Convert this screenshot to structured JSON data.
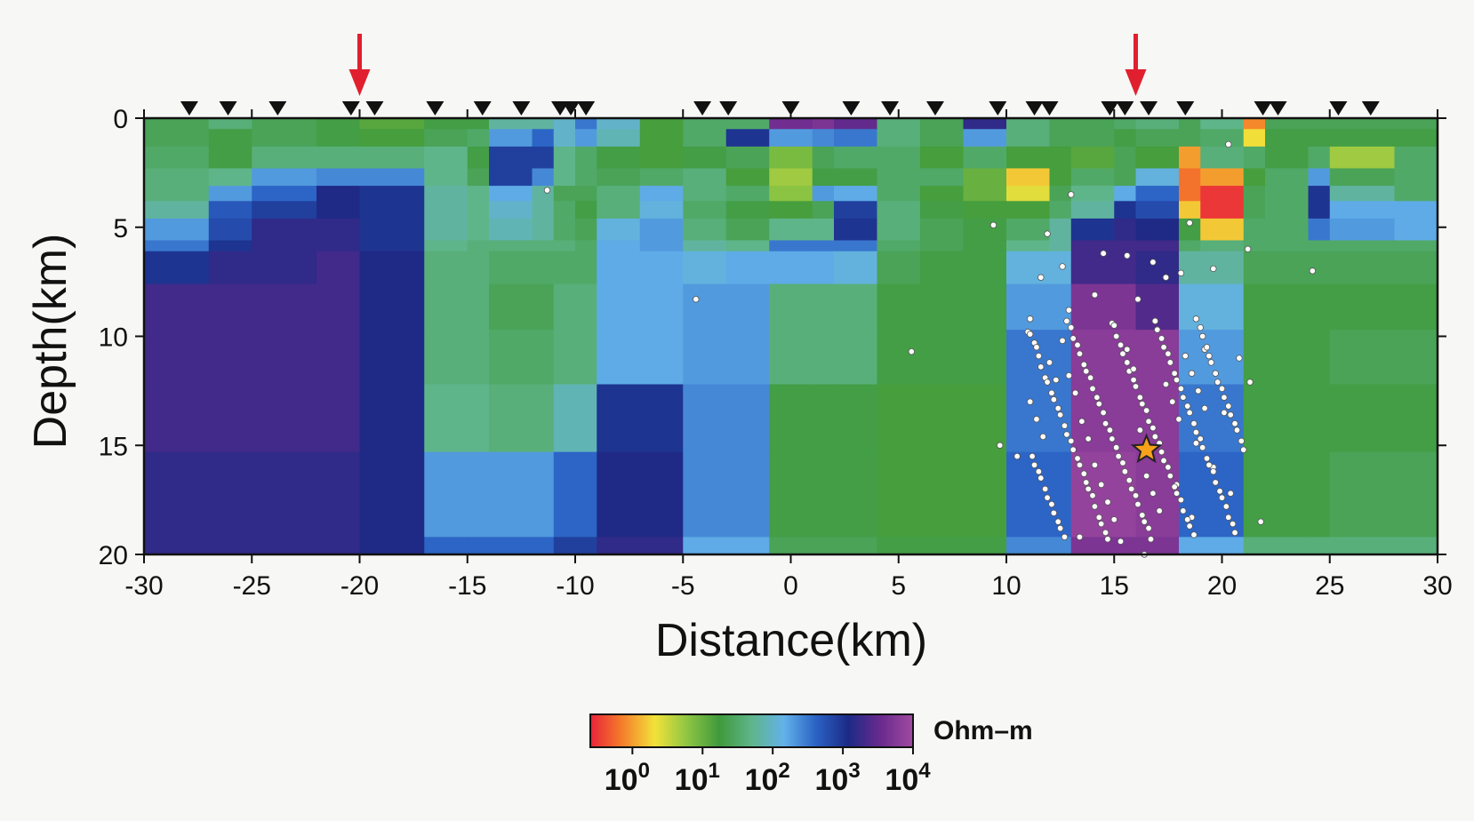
{
  "chart_data": {
    "type": "heatmap",
    "title": "",
    "xlabel": "Distance(km)",
    "ylabel": "Depth(km)",
    "xlim": [
      -30,
      30
    ],
    "ylim": [
      0,
      20
    ],
    "y_inverted": true,
    "x_ticks": [
      "-30",
      "-25",
      "-20",
      "-15",
      "-10",
      "-5",
      "0",
      "5",
      "10",
      "15",
      "20",
      "25",
      "30"
    ],
    "y_ticks": [
      "0",
      "5",
      "10",
      "15",
      "20"
    ],
    "colorbar": {
      "unit": "Ohm–m",
      "scale": "log",
      "range": [
        -0.6,
        4
      ],
      "tick_base": "10",
      "tick_exponents": [
        "0",
        "1",
        "2",
        "3",
        "4"
      ],
      "colors": [
        "#e8233a",
        "#f57f2a",
        "#f2e23a",
        "#8ec543",
        "#3f9a3c",
        "#5fb58a",
        "#63b2ea",
        "#2a62c4",
        "#1c2a86",
        "#6a2a8e",
        "#a04aa0"
      ]
    },
    "x_edges": [
      -30,
      -27,
      -25,
      -22,
      -20,
      -17,
      -15,
      -14,
      -12,
      -11,
      -10,
      -9,
      -7,
      -5,
      -3,
      -1,
      1,
      2,
      4,
      6,
      8,
      10,
      12,
      13,
      15,
      16,
      18,
      19,
      21,
      22,
      24,
      25,
      28,
      30
    ],
    "y_edges": [
      0,
      0.5,
      1.3,
      2.3,
      3.1,
      3.8,
      4.6,
      5.6,
      6.1,
      7.6,
      9.7,
      12.2,
      15.3,
      19.2,
      20
    ],
    "log10_resistivity": [
      [
        1.4,
        1.6,
        1.4,
        1.3,
        1.1,
        1.3,
        1.3,
        1.8,
        1.8,
        2.0,
        2.5,
        2.0,
        1.2,
        1.5,
        1.5,
        3.6,
        3.7,
        3.5,
        1.6,
        1.4,
        3.2,
        1.6,
        1.4,
        1.4,
        1.5,
        1.6,
        1.4,
        1.7,
        -0.1,
        1.4,
        1.4,
        1.4,
        1.4
      ],
      [
        1.4,
        1.3,
        1.4,
        1.3,
        1.2,
        1.4,
        1.5,
        2.3,
        2.6,
        2.0,
        2.3,
        1.9,
        1.2,
        1.5,
        3.0,
        2.3,
        2.4,
        2.5,
        1.6,
        1.4,
        2.3,
        1.6,
        1.4,
        1.4,
        1.3,
        1.4,
        1.4,
        1.5,
        0.3,
        1.3,
        1.3,
        1.3,
        1.3
      ],
      [
        1.5,
        1.3,
        1.6,
        1.6,
        1.6,
        1.7,
        1.3,
        2.9,
        2.9,
        1.7,
        1.5,
        1.3,
        1.2,
        1.3,
        1.4,
        0.9,
        1.4,
        1.5,
        1.5,
        1.2,
        1.5,
        1.2,
        1.2,
        1.1,
        1.4,
        1.2,
        0.0,
        1.6,
        1.5,
        1.3,
        1.5,
        0.7,
        1.5
      ],
      [
        1.6,
        1.7,
        2.3,
        2.4,
        2.4,
        1.7,
        1.4,
        2.9,
        2.4,
        1.7,
        1.5,
        1.4,
        1.5,
        1.6,
        1.2,
        0.7,
        1.3,
        1.3,
        1.5,
        1.5,
        1.0,
        0.2,
        1.2,
        1.5,
        1.4,
        2.1,
        -0.2,
        0.0,
        1.2,
        1.5,
        2.3,
        1.4,
        1.5
      ],
      [
        1.6,
        2.3,
        2.6,
        3.1,
        3.0,
        1.8,
        1.7,
        2.2,
        1.8,
        1.4,
        1.4,
        1.6,
        2.2,
        1.6,
        1.5,
        0.8,
        2.3,
        2.2,
        1.5,
        1.2,
        1.0,
        0.4,
        1.4,
        1.7,
        2.2,
        2.6,
        -0.2,
        -0.5,
        1.4,
        1.5,
        3.0,
        1.8,
        1.5
      ],
      [
        1.8,
        2.7,
        2.9,
        3.1,
        3.0,
        1.8,
        1.7,
        2.0,
        1.8,
        1.5,
        1.3,
        1.6,
        2.1,
        1.5,
        1.3,
        1.2,
        1.4,
        2.9,
        1.6,
        1.3,
        1.2,
        1.2,
        1.5,
        1.8,
        3.0,
        2.8,
        0.2,
        -0.5,
        1.4,
        1.5,
        3.0,
        2.2,
        2.2
      ],
      [
        2.3,
        2.8,
        3.2,
        3.2,
        3.0,
        1.8,
        1.7,
        1.9,
        1.8,
        1.5,
        1.4,
        2.1,
        2.3,
        1.6,
        1.4,
        1.7,
        1.7,
        3.0,
        1.6,
        1.4,
        1.3,
        1.5,
        1.8,
        3.0,
        3.2,
        3.1,
        1.3,
        0.2,
        1.5,
        1.5,
        2.5,
        2.3,
        2.2
      ],
      [
        2.5,
        3.0,
        3.2,
        3.2,
        3.0,
        1.7,
        1.6,
        1.6,
        1.6,
        1.6,
        1.5,
        2.2,
        2.3,
        1.8,
        1.7,
        2.5,
        2.5,
        2.5,
        1.5,
        1.4,
        1.3,
        1.7,
        1.8,
        3.3,
        3.3,
        3.3,
        1.5,
        1.6,
        1.5,
        1.5,
        1.5,
        1.5,
        1.5
      ],
      [
        3.0,
        3.2,
        3.2,
        3.3,
        3.1,
        1.6,
        1.6,
        1.5,
        1.5,
        1.5,
        1.5,
        2.2,
        2.2,
        2.1,
        2.2,
        2.2,
        2.2,
        2.1,
        1.4,
        1.3,
        1.3,
        2.1,
        2.1,
        3.3,
        3.3,
        3.2,
        1.8,
        1.8,
        1.4,
        1.4,
        1.4,
        1.4,
        1.4
      ],
      [
        3.3,
        3.3,
        3.3,
        3.3,
        3.1,
        1.6,
        1.6,
        1.4,
        1.4,
        1.6,
        1.6,
        2.2,
        2.2,
        2.3,
        2.3,
        1.6,
        1.6,
        1.6,
        1.3,
        1.3,
        1.3,
        2.3,
        2.3,
        3.7,
        3.7,
        3.4,
        2.1,
        2.1,
        1.3,
        1.3,
        1.3,
        1.3,
        1.3
      ],
      [
        3.3,
        3.3,
        3.3,
        3.3,
        3.1,
        1.6,
        1.6,
        1.5,
        1.5,
        1.6,
        1.6,
        2.2,
        2.2,
        2.3,
        2.3,
        1.6,
        1.6,
        1.6,
        1.3,
        1.3,
        1.3,
        2.5,
        2.5,
        3.8,
        3.8,
        3.8,
        2.3,
        2.3,
        1.3,
        1.3,
        1.3,
        1.4,
        1.4
      ],
      [
        3.3,
        3.3,
        3.3,
        3.3,
        3.1,
        1.7,
        1.7,
        1.6,
        1.6,
        1.9,
        1.9,
        3.0,
        3.0,
        2.4,
        2.4,
        1.3,
        1.3,
        1.3,
        1.2,
        1.2,
        1.2,
        2.5,
        2.5,
        3.8,
        3.8,
        3.8,
        2.5,
        2.5,
        1.3,
        1.3,
        1.3,
        1.3,
        1.3
      ],
      [
        3.2,
        3.2,
        3.2,
        3.2,
        3.1,
        2.3,
        2.3,
        2.3,
        2.3,
        2.6,
        2.6,
        3.1,
        3.1,
        2.4,
        2.4,
        1.3,
        1.3,
        1.3,
        1.2,
        1.2,
        1.2,
        2.6,
        2.6,
        3.9,
        3.9,
        3.8,
        2.6,
        2.6,
        1.3,
        1.3,
        1.3,
        1.4,
        1.4
      ],
      [
        3.2,
        3.2,
        3.2,
        3.2,
        3.1,
        2.6,
        2.6,
        2.6,
        2.6,
        2.9,
        2.9,
        3.2,
        3.2,
        2.2,
        2.2,
        1.4,
        1.4,
        1.4,
        1.3,
        1.3,
        1.3,
        2.4,
        2.4,
        3.7,
        3.7,
        3.7,
        2.2,
        2.2,
        1.6,
        1.6,
        1.6,
        1.6,
        1.6
      ]
    ],
    "stations_x": [
      -27.9,
      -26.1,
      -23.8,
      -20.4,
      -19.3,
      -16.5,
      -14.3,
      -12.5,
      -10.7,
      -10.2,
      -9.5,
      -4.1,
      -2.9,
      0.0,
      2.8,
      4.6,
      6.7,
      9.6,
      11.3,
      12.0,
      14.8,
      15.5,
      16.6,
      18.3,
      21.9,
      22.6,
      25.4,
      26.9
    ],
    "arrows_x": [
      -20.0,
      16.0
    ],
    "mainshock": [
      16.5,
      15.2
    ],
    "events": [
      [
        -11.3,
        3.3
      ],
      [
        -4.4,
        8.3
      ],
      [
        9.4,
        4.9
      ],
      [
        11.9,
        5.3
      ],
      [
        5.6,
        10.7
      ],
      [
        11.6,
        7.3
      ],
      [
        21.2,
        6.0
      ],
      [
        24.2,
        7.0
      ],
      [
        18.1,
        7.1
      ],
      [
        20.3,
        1.2
      ],
      [
        13.0,
        3.5
      ],
      [
        18.5,
        4.8
      ],
      [
        19.6,
        6.9
      ],
      [
        10.5,
        15.5
      ],
      [
        21.8,
        18.5
      ],
      [
        16.4,
        20.0
      ],
      [
        13.4,
        19.2
      ],
      [
        9.7,
        15.0
      ],
      [
        12.6,
        6.8
      ],
      [
        14.5,
        6.2
      ],
      [
        15.6,
        6.3
      ],
      [
        17.4,
        7.3
      ],
      [
        16.8,
        6.6
      ],
      [
        12.9,
        8.8
      ],
      [
        14.1,
        8.1
      ],
      [
        16.1,
        8.3
      ],
      [
        11.1,
        9.2
      ],
      [
        20.8,
        11.0
      ],
      [
        21.3,
        12.1
      ],
      [
        19.2,
        10.6
      ],
      [
        20.1,
        13.5
      ],
      [
        18.8,
        14.9
      ],
      [
        19.6,
        16.0
      ],
      [
        20.4,
        17.2
      ],
      [
        17.9,
        16.8
      ],
      [
        18.6,
        18.3
      ],
      [
        11.0,
        9.8
      ],
      [
        11.1,
        9.9
      ],
      [
        11.3,
        10.3
      ],
      [
        11.4,
        10.5
      ],
      [
        11.5,
        10.9
      ],
      [
        11.6,
        11.4
      ],
      [
        11.8,
        11.9
      ],
      [
        11.9,
        12.1
      ],
      [
        12.1,
        12.6
      ],
      [
        12.2,
        12.9
      ],
      [
        12.4,
        13.3
      ],
      [
        12.5,
        13.6
      ],
      [
        12.7,
        14.1
      ],
      [
        12.8,
        14.5
      ],
      [
        13.0,
        14.8
      ],
      [
        13.1,
        15.2
      ],
      [
        13.3,
        15.6
      ],
      [
        13.4,
        15.9
      ],
      [
        13.6,
        16.3
      ],
      [
        13.7,
        16.7
      ],
      [
        13.8,
        17.0
      ],
      [
        14.0,
        17.3
      ],
      [
        14.1,
        17.8
      ],
      [
        14.3,
        18.3
      ],
      [
        14.4,
        18.6
      ],
      [
        14.6,
        19.0
      ],
      [
        14.7,
        19.3
      ],
      [
        14.9,
        9.4
      ],
      [
        15.0,
        9.5
      ],
      [
        15.1,
        10.0
      ],
      [
        15.3,
        10.4
      ],
      [
        15.4,
        10.8
      ],
      [
        15.6,
        11.2
      ],
      [
        15.7,
        11.6
      ],
      [
        15.9,
        12.0
      ],
      [
        16.0,
        12.3
      ],
      [
        16.2,
        12.8
      ],
      [
        16.3,
        13.1
      ],
      [
        16.5,
        13.4
      ],
      [
        16.6,
        13.9
      ],
      [
        16.8,
        14.2
      ],
      [
        16.9,
        14.6
      ],
      [
        17.1,
        14.9
      ],
      [
        17.2,
        15.3
      ],
      [
        17.3,
        15.7
      ],
      [
        17.5,
        16.0
      ],
      [
        17.6,
        16.4
      ],
      [
        17.8,
        16.9
      ],
      [
        17.9,
        17.2
      ],
      [
        18.1,
        17.5
      ],
      [
        18.2,
        18.0
      ],
      [
        18.4,
        18.4
      ],
      [
        18.5,
        18.7
      ],
      [
        18.7,
        19.1
      ],
      [
        18.8,
        9.2
      ],
      [
        19.0,
        9.6
      ],
      [
        19.1,
        10.0
      ],
      [
        19.3,
        10.5
      ],
      [
        19.4,
        10.9
      ],
      [
        19.5,
        11.2
      ],
      [
        19.7,
        11.7
      ],
      [
        19.8,
        12.1
      ],
      [
        20.0,
        12.4
      ],
      [
        20.1,
        12.8
      ],
      [
        20.3,
        13.2
      ],
      [
        20.4,
        13.6
      ],
      [
        20.6,
        14.0
      ],
      [
        20.7,
        14.3
      ],
      [
        20.9,
        14.8
      ],
      [
        21.0,
        15.2
      ],
      [
        11.2,
        15.5
      ],
      [
        11.3,
        15.9
      ],
      [
        11.5,
        16.2
      ],
      [
        11.6,
        16.5
      ],
      [
        11.8,
        17.0
      ],
      [
        11.9,
        17.4
      ],
      [
        12.1,
        17.7
      ],
      [
        12.2,
        18.1
      ],
      [
        12.4,
        18.5
      ],
      [
        12.5,
        18.8
      ],
      [
        12.7,
        19.2
      ],
      [
        12.8,
        9.3
      ],
      [
        13.0,
        9.6
      ],
      [
        13.1,
        10.1
      ],
      [
        13.3,
        10.4
      ],
      [
        13.4,
        10.8
      ],
      [
        13.6,
        11.3
      ],
      [
        13.7,
        11.6
      ],
      [
        13.9,
        11.9
      ],
      [
        14.0,
        12.4
      ],
      [
        14.2,
        12.8
      ],
      [
        14.3,
        13.1
      ],
      [
        14.5,
        13.5
      ],
      [
        14.6,
        14.0
      ],
      [
        14.8,
        14.3
      ],
      [
        14.9,
        14.7
      ],
      [
        15.1,
        15.1
      ],
      [
        15.2,
        15.5
      ],
      [
        15.4,
        15.8
      ],
      [
        15.5,
        16.2
      ],
      [
        15.7,
        16.6
      ],
      [
        15.8,
        17.0
      ],
      [
        16.0,
        17.3
      ],
      [
        16.1,
        17.7
      ],
      [
        16.3,
        18.2
      ],
      [
        16.4,
        18.5
      ],
      [
        16.6,
        18.8
      ],
      [
        16.7,
        19.3
      ],
      [
        16.9,
        9.3
      ],
      [
        17.0,
        9.7
      ],
      [
        17.2,
        10.1
      ],
      [
        17.3,
        10.5
      ],
      [
        17.5,
        10.8
      ],
      [
        17.6,
        11.2
      ],
      [
        17.8,
        11.7
      ],
      [
        17.9,
        12.0
      ],
      [
        18.1,
        12.4
      ],
      [
        18.2,
        12.8
      ],
      [
        18.4,
        13.2
      ],
      [
        18.5,
        13.5
      ],
      [
        18.7,
        14.0
      ],
      [
        18.8,
        14.4
      ],
      [
        19.0,
        14.7
      ],
      [
        19.1,
        15.1
      ],
      [
        19.3,
        15.6
      ],
      [
        19.4,
        15.9
      ],
      [
        19.6,
        16.2
      ],
      [
        19.7,
        16.7
      ],
      [
        19.9,
        17.1
      ],
      [
        20.0,
        17.4
      ],
      [
        20.2,
        17.8
      ],
      [
        20.3,
        18.3
      ],
      [
        20.5,
        18.6
      ],
      [
        20.6,
        19.0
      ],
      [
        11.1,
        13.0
      ],
      [
        11.4,
        13.8
      ],
      [
        11.7,
        14.6
      ],
      [
        12.0,
        11.2
      ],
      [
        12.3,
        12.0
      ],
      [
        12.6,
        10.2
      ],
      [
        12.9,
        11.8
      ],
      [
        13.2,
        12.6
      ],
      [
        13.5,
        13.9
      ],
      [
        13.8,
        14.7
      ],
      [
        14.1,
        15.9
      ],
      [
        14.4,
        16.8
      ],
      [
        14.7,
        17.6
      ],
      [
        15.0,
        18.4
      ],
      [
        15.3,
        19.4
      ],
      [
        15.6,
        10.6
      ],
      [
        15.9,
        11.5
      ],
      [
        16.2,
        14.3
      ],
      [
        16.5,
        16.4
      ],
      [
        16.8,
        17.2
      ],
      [
        17.1,
        18.0
      ],
      [
        17.4,
        12.2
      ],
      [
        17.7,
        13.0
      ],
      [
        18.0,
        13.8
      ],
      [
        18.3,
        10.9
      ],
      [
        18.6,
        11.7
      ],
      [
        18.9,
        12.5
      ],
      [
        19.2,
        13.3
      ]
    ]
  }
}
